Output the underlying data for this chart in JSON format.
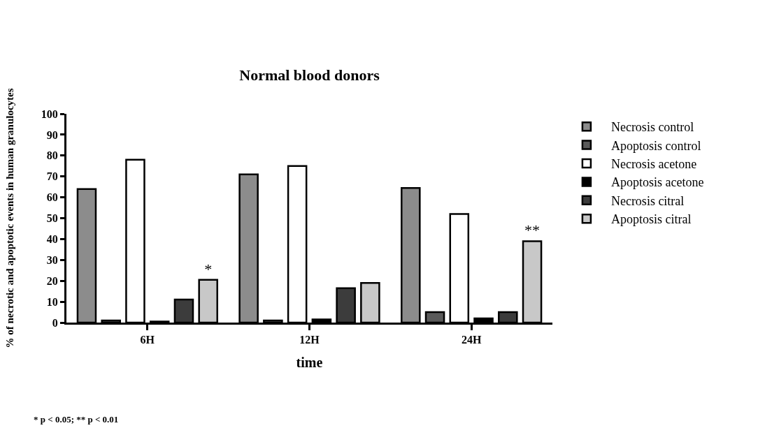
{
  "chart_data": {
    "type": "bar",
    "title": "Normal blood donors",
    "xlabel": "time",
    "ylabel": "% of necrotic and apoptotic events in human granulocytes",
    "categories": [
      "6H",
      "12H",
      "24H"
    ],
    "ylim": [
      0,
      100
    ],
    "yticks": [
      0,
      10,
      20,
      30,
      40,
      50,
      60,
      70,
      80,
      90,
      100
    ],
    "series": [
      {
        "name": "Necrosis control",
        "color": "#8c8c8c",
        "values": [
          64,
          71,
          64.5
        ]
      },
      {
        "name": "Apoptosis control",
        "color": "#5a5a5a",
        "values": [
          1,
          1,
          5
        ]
      },
      {
        "name": "Necrosis acetone",
        "color": "#ffffff",
        "values": [
          78,
          75,
          52
        ]
      },
      {
        "name": "Apoptosis acetone",
        "color": "#000000",
        "values": [
          0.5,
          1.5,
          2
        ]
      },
      {
        "name": "Necrosis citral",
        "color": "#3c3c3c",
        "values": [
          11,
          16.5,
          5
        ]
      },
      {
        "name": "Apoptosis citral",
        "color": "#c8c8c8",
        "values": [
          20.5,
          19,
          39
        ],
        "value_labels": [
          "*",
          null,
          "**"
        ]
      }
    ],
    "annotations": [
      "* p < 0.05; ** p < 0.01"
    ],
    "grid": false,
    "legend": "top right"
  }
}
